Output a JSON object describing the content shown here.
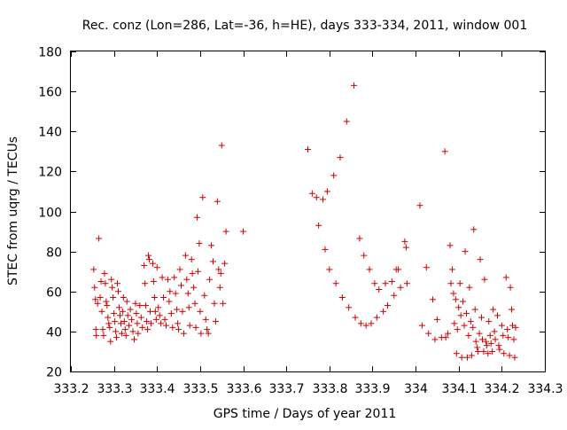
{
  "chart_data": {
    "type": "scatter",
    "title": "Rec. conz (Lon=286, Lat=-36, h=HE), days 333-334, 2011, window 001",
    "xlabel": "GPS time / Days of year 2011",
    "ylabel": "STEC from uqrg / TECUs",
    "xlim": [
      333.2,
      334.3
    ],
    "ylim": [
      20,
      180
    ],
    "xticks": [
      "333.2",
      "333.3",
      "333.4",
      "333.5",
      "333.6",
      "333.7",
      "333.8",
      "333.9",
      "334",
      "334.1",
      "334.2",
      "334.3"
    ],
    "yticks": [
      "20",
      "40",
      "60",
      "80",
      "100",
      "120",
      "140",
      "160",
      "180"
    ],
    "marker": "plus",
    "color": "#cc0000",
    "grid": false,
    "points": [
      [
        333.253,
        71
      ],
      [
        333.255,
        62
      ],
      [
        333.257,
        56
      ],
      [
        333.258,
        41
      ],
      [
        333.259,
        38
      ],
      [
        333.262,
        54
      ],
      [
        333.265,
        86.5
      ],
      [
        333.268,
        57
      ],
      [
        333.27,
        65
      ],
      [
        333.272,
        50
      ],
      [
        333.274,
        41
      ],
      [
        333.276,
        38
      ],
      [
        333.278,
        69
      ],
      [
        333.28,
        64
      ],
      [
        333.282,
        55
      ],
      [
        333.284,
        53
      ],
      [
        333.286,
        47
      ],
      [
        333.288,
        44
      ],
      [
        333.29,
        42
      ],
      [
        333.292,
        35
      ],
      [
        333.294,
        66
      ],
      [
        333.296,
        62
      ],
      [
        333.298,
        57
      ],
      [
        333.3,
        49
      ],
      [
        333.302,
        45
      ],
      [
        333.304,
        40
      ],
      [
        333.306,
        37
      ],
      [
        333.308,
        64
      ],
      [
        333.31,
        60
      ],
      [
        333.312,
        52
      ],
      [
        333.314,
        48
      ],
      [
        333.316,
        44
      ],
      [
        333.318,
        39
      ],
      [
        333.32,
        50
      ],
      [
        333.322,
        57
      ],
      [
        333.324,
        45
      ],
      [
        333.326,
        41
      ],
      [
        333.328,
        38
      ],
      [
        333.33,
        55
      ],
      [
        333.332,
        48
      ],
      [
        333.335,
        43
      ],
      [
        333.338,
        51
      ],
      [
        333.341,
        46
      ],
      [
        333.344,
        40
      ],
      [
        333.347,
        36
      ],
      [
        333.35,
        54
      ],
      [
        333.352,
        49
      ],
      [
        333.354,
        44
      ],
      [
        333.356,
        39
      ],
      [
        333.36,
        53
      ],
      [
        333.363,
        47
      ],
      [
        333.366,
        42
      ],
      [
        333.37,
        73
      ],
      [
        333.372,
        64
      ],
      [
        333.374,
        53
      ],
      [
        333.376,
        45
      ],
      [
        333.378,
        41
      ],
      [
        333.38,
        78
      ],
      [
        333.382,
        76
      ],
      [
        333.384,
        50
      ],
      [
        333.386,
        44
      ],
      [
        333.39,
        74
      ],
      [
        333.392,
        65
      ],
      [
        333.394,
        57
      ],
      [
        333.396,
        50
      ],
      [
        333.398,
        46
      ],
      [
        333.4,
        72
      ],
      [
        333.403,
        52
      ],
      [
        333.406,
        48
      ],
      [
        333.409,
        44
      ],
      [
        333.412,
        67
      ],
      [
        333.415,
        57
      ],
      [
        333.418,
        46
      ],
      [
        333.421,
        43
      ],
      [
        333.425,
        66
      ],
      [
        333.428,
        55
      ],
      [
        333.43,
        60
      ],
      [
        333.433,
        49
      ],
      [
        333.436,
        42
      ],
      [
        333.44,
        67
      ],
      [
        333.443,
        59
      ],
      [
        333.446,
        51
      ],
      [
        333.448,
        44
      ],
      [
        333.45,
        41
      ],
      [
        333.453,
        71
      ],
      [
        333.456,
        63
      ],
      [
        333.459,
        50
      ],
      [
        333.462,
        39
      ],
      [
        333.466,
        78
      ],
      [
        333.469,
        66
      ],
      [
        333.472,
        59
      ],
      [
        333.474,
        52
      ],
      [
        333.476,
        43
      ],
      [
        333.48,
        76
      ],
      [
        333.482,
        69
      ],
      [
        333.485,
        62
      ],
      [
        333.488,
        54
      ],
      [
        333.49,
        42
      ],
      [
        333.493,
        97
      ],
      [
        333.495,
        70
      ],
      [
        333.498,
        84
      ],
      [
        333.5,
        50
      ],
      [
        333.502,
        39
      ],
      [
        333.506,
        107
      ],
      [
        333.51,
        58
      ],
      [
        333.513,
        46
      ],
      [
        333.516,
        41
      ],
      [
        333.519,
        39
      ],
      [
        333.522,
        66
      ],
      [
        333.526,
        83
      ],
      [
        333.53,
        75
      ],
      [
        333.533,
        54
      ],
      [
        333.536,
        45
      ],
      [
        333.54,
        105
      ],
      [
        333.543,
        71
      ],
      [
        333.546,
        62
      ],
      [
        333.548,
        69
      ],
      [
        333.55,
        133
      ],
      [
        333.553,
        54
      ],
      [
        333.557,
        74
      ],
      [
        333.56,
        90
      ],
      [
        333.6,
        90
      ],
      [
        333.75,
        131
      ],
      [
        333.76,
        109
      ],
      [
        333.77,
        107
      ],
      [
        333.775,
        93
      ],
      [
        333.785,
        106
      ],
      [
        333.79,
        81
      ],
      [
        333.795,
        110
      ],
      [
        333.8,
        71
      ],
      [
        333.81,
        118
      ],
      [
        333.815,
        64
      ],
      [
        333.825,
        127
      ],
      [
        333.83,
        57
      ],
      [
        333.84,
        145
      ],
      [
        333.845,
        52
      ],
      [
        333.857,
        163
      ],
      [
        333.86,
        47
      ],
      [
        333.87,
        86.5
      ],
      [
        333.873,
        44
      ],
      [
        333.88,
        78
      ],
      [
        333.885,
        43
      ],
      [
        333.893,
        71
      ],
      [
        333.897,
        44
      ],
      [
        333.905,
        64
      ],
      [
        333.91,
        47
      ],
      [
        333.915,
        61
      ],
      [
        333.925,
        50
      ],
      [
        333.93,
        64
      ],
      [
        333.935,
        53
      ],
      [
        333.945,
        65
      ],
      [
        333.95,
        58
      ],
      [
        333.955,
        71
      ],
      [
        333.96,
        71
      ],
      [
        333.965,
        62
      ],
      [
        333.975,
        85
      ],
      [
        333.978,
        82
      ],
      [
        333.98,
        64
      ],
      [
        334.01,
        103
      ],
      [
        334.015,
        43
      ],
      [
        334.025,
        72
      ],
      [
        334.03,
        39
      ],
      [
        334.04,
        56
      ],
      [
        334.045,
        36
      ],
      [
        334.05,
        46
      ],
      [
        334.06,
        37
      ],
      [
        334.068,
        130
      ],
      [
        334.07,
        37
      ],
      [
        334.075,
        39
      ],
      [
        334.08,
        83
      ],
      [
        334.082,
        64
      ],
      [
        334.085,
        71
      ],
      [
        334.088,
        59
      ],
      [
        334.09,
        44
      ],
      [
        334.093,
        56
      ],
      [
        334.095,
        29
      ],
      [
        334.097,
        41
      ],
      [
        334.1,
        52
      ],
      [
        334.103,
        64
      ],
      [
        334.105,
        48
      ],
      [
        334.107,
        27
      ],
      [
        334.11,
        55
      ],
      [
        334.113,
        43
      ],
      [
        334.115,
        80
      ],
      [
        334.118,
        49
      ],
      [
        334.12,
        27
      ],
      [
        334.123,
        38
      ],
      [
        334.125,
        62
      ],
      [
        334.128,
        45
      ],
      [
        334.13,
        28
      ],
      [
        334.133,
        42
      ],
      [
        334.135,
        91
      ],
      [
        334.138,
        51
      ],
      [
        334.14,
        35
      ],
      [
        334.143,
        32
      ],
      [
        334.145,
        30
      ],
      [
        334.148,
        39
      ],
      [
        334.15,
        76
      ],
      [
        334.153,
        47
      ],
      [
        334.155,
        36
      ],
      [
        334.158,
        30
      ],
      [
        334.16,
        66
      ],
      [
        334.163,
        35
      ],
      [
        334.165,
        33
      ],
      [
        334.168,
        29
      ],
      [
        334.17,
        45
      ],
      [
        334.173,
        38
      ],
      [
        334.175,
        34
      ],
      [
        334.178,
        30
      ],
      [
        334.18,
        51
      ],
      [
        334.183,
        40
      ],
      [
        334.185,
        36
      ],
      [
        334.19,
        48
      ],
      [
        334.193,
        33
      ],
      [
        334.195,
        31
      ],
      [
        334.2,
        43
      ],
      [
        334.203,
        38
      ],
      [
        334.205,
        29
      ],
      [
        334.21,
        67
      ],
      [
        334.213,
        41
      ],
      [
        334.215,
        37
      ],
      [
        334.218,
        28
      ],
      [
        334.22,
        62
      ],
      [
        334.223,
        51
      ],
      [
        334.225,
        43
      ],
      [
        334.228,
        36
      ],
      [
        334.23,
        27
      ],
      [
        334.232,
        42
      ]
    ]
  }
}
